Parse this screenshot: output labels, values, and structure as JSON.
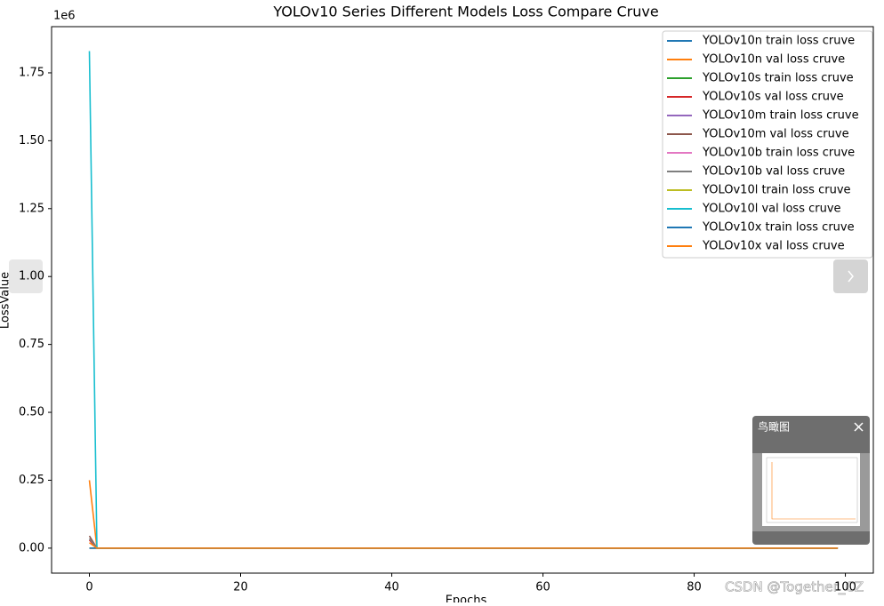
{
  "chart_data": {
    "type": "line",
    "title": "YOLOv10 Series Different Models Loss Compare Cruve",
    "xlabel": "Epochs",
    "ylabel": "LossValue",
    "y_offset_label": "1e6",
    "x": [
      0,
      1,
      99
    ],
    "series": [
      {
        "name": "YOLOv10n train loss cruve",
        "color": "#1f77b4",
        "values": [
          0,
          0,
          0
        ]
      },
      {
        "name": "YOLOv10n val loss cruve",
        "color": "#ff7f0e",
        "values": [
          0.25,
          0,
          0
        ]
      },
      {
        "name": "YOLOv10s train loss cruve",
        "color": "#2ca02c",
        "values": [
          0,
          0,
          0
        ]
      },
      {
        "name": "YOLOv10s val loss cruve",
        "color": "#d62728",
        "values": [
          0.03,
          0,
          0
        ]
      },
      {
        "name": "YOLOv10m train loss cruve",
        "color": "#9467bd",
        "values": [
          0,
          0,
          0
        ]
      },
      {
        "name": "YOLOv10m val loss cruve",
        "color": "#8c564b",
        "values": [
          0.045,
          0,
          0
        ]
      },
      {
        "name": "YOLOv10b train loss cruve",
        "color": "#e377c2",
        "values": [
          0,
          0,
          0
        ]
      },
      {
        "name": "YOLOv10b val loss cruve",
        "color": "#7f7f7f",
        "values": [
          0.035,
          0,
          0
        ]
      },
      {
        "name": "YOLOv10l train loss cruve",
        "color": "#bcbd22",
        "values": [
          0,
          0,
          0
        ]
      },
      {
        "name": "YOLOv10l val loss cruve",
        "color": "#17becf",
        "values": [
          1.83,
          0,
          0
        ]
      },
      {
        "name": "YOLOv10x train loss cruve",
        "color": "#1f77b4",
        "values": [
          0,
          0,
          0
        ]
      },
      {
        "name": "YOLOv10x val loss cruve",
        "color": "#ff7f0e",
        "values": [
          0.02,
          0,
          0
        ]
      }
    ],
    "xlim": [
      -5,
      103.7
    ],
    "xticks": [
      0,
      20,
      40,
      60,
      80,
      100
    ],
    "ylim": [
      -0.092,
      1.92
    ],
    "yticks": [
      {
        "value": 0,
        "label": "0.00"
      },
      {
        "value": 0.25,
        "label": "0.25"
      },
      {
        "value": 0.5,
        "label": "0.50"
      },
      {
        "value": 0.75,
        "label": "0.75"
      },
      {
        "value": 1,
        "label": "1.00"
      },
      {
        "value": 1.25,
        "label": "1.25"
      },
      {
        "value": 1.5,
        "label": "1.50"
      },
      {
        "value": 1.75,
        "label": "1.75"
      }
    ],
    "grid": false,
    "legend": "upper right"
  },
  "viewer": {
    "minimap_title": "鸟瞰图",
    "watermark": "CSDN @Together_CZ"
  }
}
